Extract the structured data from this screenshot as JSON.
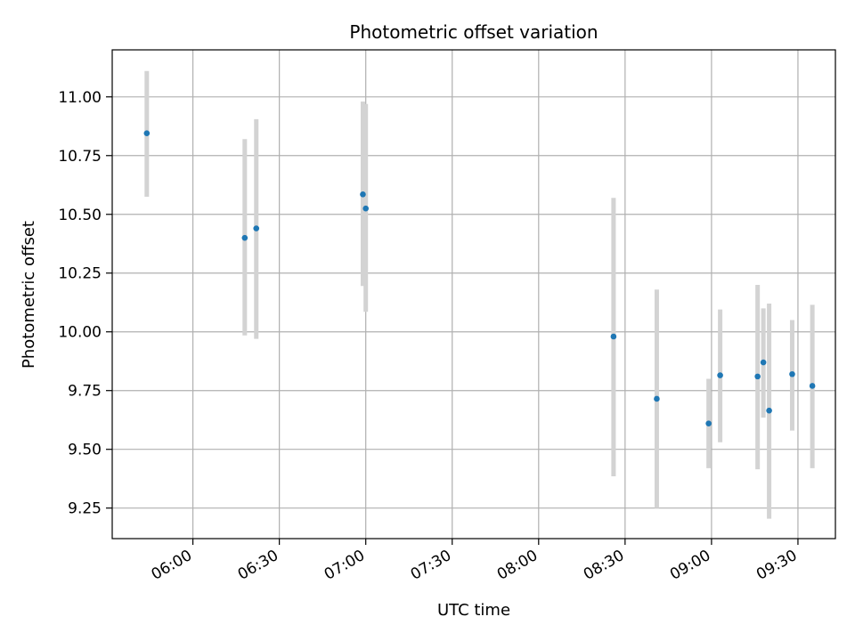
{
  "chart_data": {
    "type": "scatter",
    "title": "Photometric offset variation",
    "xlabel": "UTC time",
    "ylabel": "Photometric offset",
    "x_axis_type": "time",
    "xlim": [
      "05:32",
      "09:43"
    ],
    "ylim": [
      9.12,
      11.2
    ],
    "x_ticks": [
      "06:00",
      "06:30",
      "07:00",
      "07:30",
      "08:00",
      "08:30",
      "09:00",
      "09:30"
    ],
    "y_ticks": [
      9.25,
      9.5,
      9.75,
      10.0,
      10.25,
      10.5,
      10.75,
      11.0
    ],
    "y_tick_labels": [
      "9.25",
      "9.50",
      "9.75",
      "10.00",
      "10.25",
      "10.50",
      "10.75",
      "11.00"
    ],
    "grid": true,
    "point_color": "#1f77b4",
    "errorbar_color": "#d3d3d3",
    "points": [
      {
        "x": "05:44",
        "y": 10.845,
        "err_low": 10.575,
        "err_high": 11.11
      },
      {
        "x": "06:18",
        "y": 10.4,
        "err_low": 9.985,
        "err_high": 10.82
      },
      {
        "x": "06:22",
        "y": 10.44,
        "err_low": 9.97,
        "err_high": 10.905
      },
      {
        "x": "06:59",
        "y": 10.585,
        "err_low": 10.195,
        "err_high": 10.98
      },
      {
        "x": "07:00",
        "y": 10.525,
        "err_low": 10.085,
        "err_high": 10.97
      },
      {
        "x": "08:26",
        "y": 9.98,
        "err_low": 9.385,
        "err_high": 10.57
      },
      {
        "x": "08:41",
        "y": 9.715,
        "err_low": 9.25,
        "err_high": 10.18
      },
      {
        "x": "08:59",
        "y": 9.61,
        "err_low": 9.42,
        "err_high": 9.8
      },
      {
        "x": "09:03",
        "y": 9.815,
        "err_low": 9.53,
        "err_high": 10.095
      },
      {
        "x": "09:16",
        "y": 9.81,
        "err_low": 9.415,
        "err_high": 10.2
      },
      {
        "x": "09:18",
        "y": 9.87,
        "err_low": 9.635,
        "err_high": 10.1
      },
      {
        "x": "09:20",
        "y": 9.665,
        "err_low": 9.205,
        "err_high": 10.12
      },
      {
        "x": "09:28",
        "y": 9.82,
        "err_low": 9.58,
        "err_high": 10.05
      },
      {
        "x": "09:35",
        "y": 9.77,
        "err_low": 9.42,
        "err_high": 10.115
      }
    ]
  }
}
